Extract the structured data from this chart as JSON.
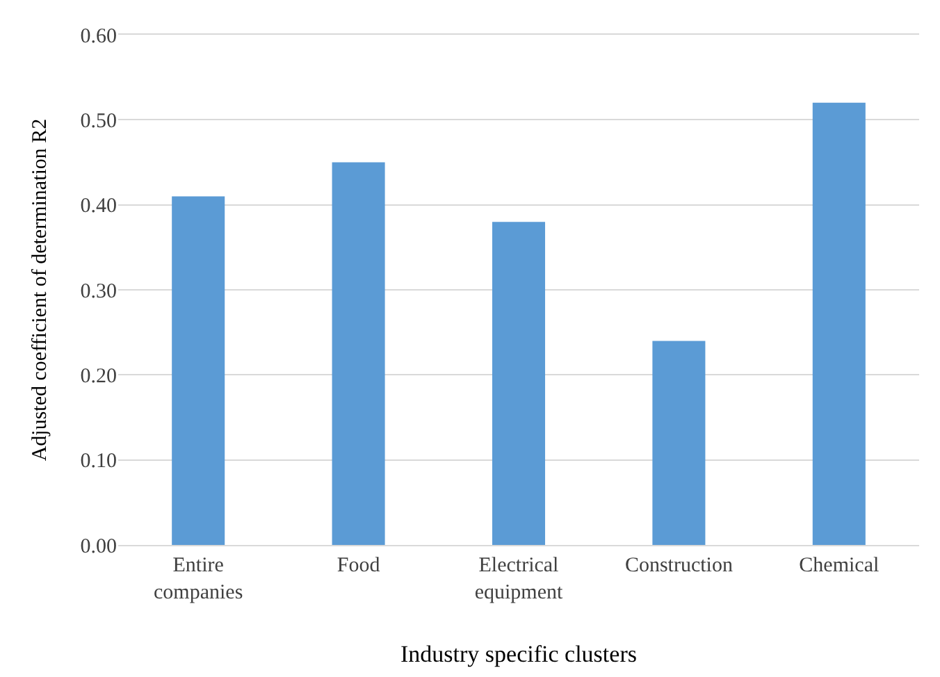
{
  "chart_data": {
    "type": "bar",
    "xlabel": "Industry specific clusters",
    "ylabel": "Adjusted coefficient of determination R2",
    "categories": [
      "Entire companies",
      "Food",
      "Electrical equipment",
      "Construction",
      "Chemical"
    ],
    "values": [
      0.41,
      0.45,
      0.38,
      0.24,
      0.52
    ],
    "color": "#5b9bd5",
    "ylim": [
      0,
      0.6
    ],
    "yticks": [
      {
        "value": 0,
        "label": "0.00"
      },
      {
        "value": 0.1,
        "label": "0.10"
      },
      {
        "value": 0.2,
        "label": "0.20"
      },
      {
        "value": 0.3,
        "label": "0.30"
      },
      {
        "value": 0.4,
        "label": "0.40"
      },
      {
        "value": 0.5,
        "label": "0.50"
      },
      {
        "value": 0.6,
        "label": "0.60"
      }
    ],
    "grid": "y"
  }
}
